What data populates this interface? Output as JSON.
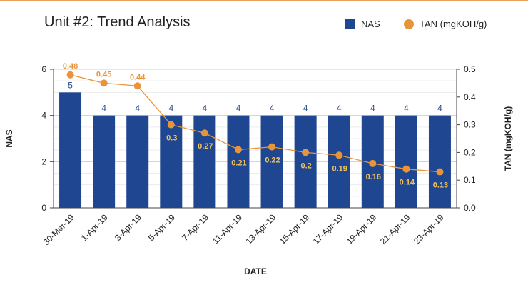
{
  "chart_data": {
    "type": "bar",
    "title": "Unit #2: Trend Analysis",
    "xlabel": "DATE",
    "ylabel": "NAS",
    "y2label": "TAN (mgKOH/g)",
    "categories": [
      "30-Mar-19",
      "1-Apr-19",
      "3-Apr-19",
      "5-Apr-19",
      "7-Apr-19",
      "11-Apr-19",
      "13-Apr-19",
      "15-Apr-19",
      "17-Apr-19",
      "19-Apr-19",
      "21-Apr-19",
      "23-Apr-19"
    ],
    "series": [
      {
        "name": "NAS",
        "type": "bar",
        "axis": "left",
        "color": "#1f4690",
        "values": [
          5,
          4,
          4,
          4,
          4,
          4,
          4,
          4,
          4,
          4,
          4,
          4
        ]
      },
      {
        "name": "TAN (mgKOH/g)",
        "type": "line",
        "axis": "right",
        "color": "#e8953a",
        "values": [
          0.48,
          0.45,
          0.44,
          0.3,
          0.27,
          0.21,
          0.22,
          0.2,
          0.19,
          0.16,
          0.14,
          0.13
        ]
      }
    ],
    "ylim": [
      0,
      6
    ],
    "yticks": [
      "0",
      "2",
      "4",
      "6"
    ],
    "y2lim": [
      0,
      0.5
    ],
    "y2ticks": [
      "0.0",
      "0.1",
      "0.2",
      "0.3",
      "0.4",
      "0.5"
    ],
    "grid": true,
    "legend_position": "top-right"
  }
}
